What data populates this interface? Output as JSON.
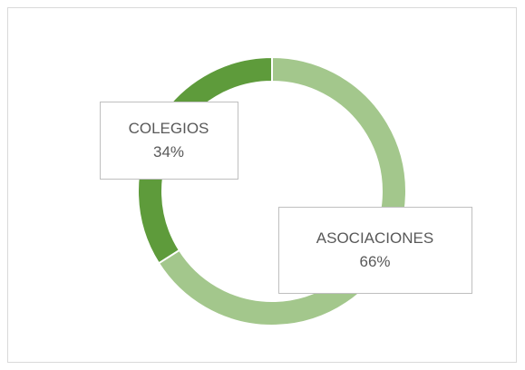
{
  "chart_data": {
    "type": "pie",
    "categories": [
      "ASOCIACIONES",
      "COLEGIOS"
    ],
    "values": [
      66,
      34
    ],
    "value_labels": [
      "66%",
      "34%"
    ],
    "colors": [
      "#a3c78c",
      "#5e9b3b"
    ]
  }
}
